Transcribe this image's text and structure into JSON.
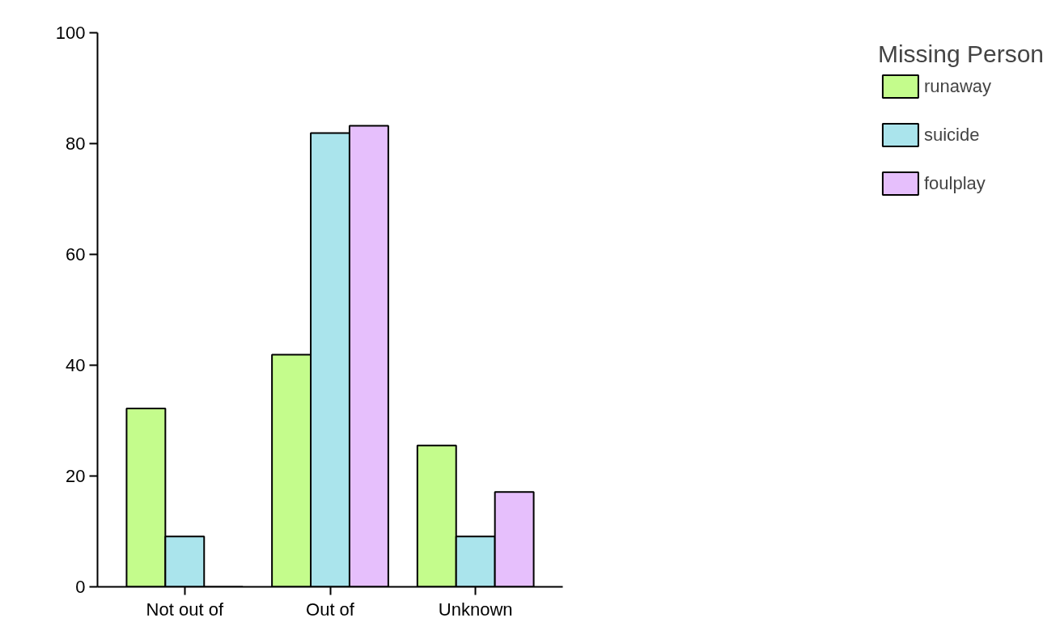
{
  "chart_data": {
    "type": "bar",
    "categories": [
      "Not out of",
      "Out of",
      "Unknown"
    ],
    "series": [
      {
        "name": "runaway",
        "color": "#c4fc8c",
        "values": [
          32.2,
          41.9,
          25.5
        ]
      },
      {
        "name": "suicide",
        "color": "#aae4ec",
        "values": [
          9.1,
          81.9,
          9.1
        ]
      },
      {
        "name": "foulplay",
        "color": "#e6bffc",
        "values": [
          0,
          83.2,
          17.1
        ]
      }
    ],
    "legend_title": "Missing Person",
    "legend": "right",
    "grid": false,
    "ylim": [
      0,
      100
    ],
    "yticks": [
      0,
      20,
      40,
      60,
      80,
      100
    ]
  }
}
